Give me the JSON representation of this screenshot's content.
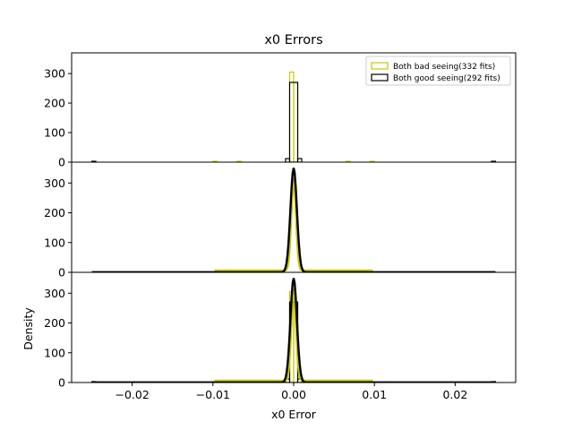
{
  "chart_data": {
    "type": "histogram",
    "title": "x0 Errors",
    "xlabel": "x0 Error",
    "ylabel": "Density",
    "xlim": [
      -0.0275,
      0.0275
    ],
    "x_ticks": [
      -0.02,
      -0.01,
      0.0,
      0.01,
      0.02
    ],
    "x_tick_labels": [
      "−0.02",
      "−0.01",
      "0.00",
      "0.01",
      "0.02"
    ],
    "panels": [
      {
        "ylim": [
          0,
          370
        ],
        "y_ticks": [
          0,
          100,
          200,
          300
        ],
        "y_tick_labels": [
          "0",
          "100",
          "200",
          "300"
        ],
        "show": [
          "hist_bad",
          "hist_good"
        ],
        "legend": true
      },
      {
        "ylim": [
          0,
          370
        ],
        "y_ticks": [
          0,
          100,
          200,
          300
        ],
        "y_tick_labels": [
          "0",
          "100",
          "200",
          "300"
        ],
        "show": [
          "kde_bad",
          "kde_good"
        ],
        "legend": false
      },
      {
        "ylim": [
          0,
          370
        ],
        "y_ticks": [
          0,
          100,
          200,
          300
        ],
        "y_tick_labels": [
          "0",
          "100",
          "200",
          "300"
        ],
        "show": [
          "hist_bad",
          "hist_good",
          "kde_bad",
          "kde_good"
        ],
        "legend": false
      }
    ],
    "legend": {
      "placement": "upper-right"
    },
    "series": [
      {
        "name": "Both bad seeing(332 fits)",
        "color": "#c8c800",
        "hist_bins": [
          {
            "x0": -0.01,
            "x1": -0.0095,
            "y": 3
          },
          {
            "x0": -0.007,
            "x1": -0.0065,
            "y": 3
          },
          {
            "x0": -0.0005,
            "x1": 0.0,
            "y": 305
          },
          {
            "x0": 0.0,
            "x1": 0.0005,
            "y": 270
          },
          {
            "x0": 0.0065,
            "x1": 0.007,
            "y": 3
          },
          {
            "x0": 0.0095,
            "x1": 0.01,
            "y": 3
          }
        ],
        "kde": {
          "center": 0.0,
          "sigma": 0.0003,
          "peak": 300,
          "baseline": 6,
          "range": [
            -0.0098,
            0.0098
          ]
        }
      },
      {
        "name": "Both good seeing(292 fits)",
        "color": "#000000",
        "hist_bins": [
          {
            "x0": -0.025,
            "x1": -0.0245,
            "y": 3
          },
          {
            "x0": -0.001,
            "x1": -0.0005,
            "y": 12
          },
          {
            "x0": -0.0005,
            "x1": 0.0005,
            "y": 270
          },
          {
            "x0": 0.0005,
            "x1": 0.001,
            "y": 12
          },
          {
            "x0": 0.0245,
            "x1": 0.025,
            "y": 3
          }
        ],
        "kde": {
          "center": 0.0,
          "sigma": 0.0004,
          "peak": 350,
          "baseline": 0.5,
          "range": [
            -0.025,
            0.025
          ]
        }
      }
    ]
  }
}
